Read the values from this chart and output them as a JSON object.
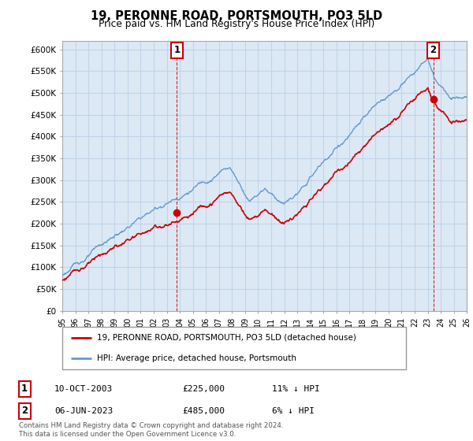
{
  "title": "19, PERONNE ROAD, PORTSMOUTH, PO3 5LD",
  "subtitle": "Price paid vs. HM Land Registry's House Price Index (HPI)",
  "ylabel_ticks": [
    "£0",
    "£50K",
    "£100K",
    "£150K",
    "£200K",
    "£250K",
    "£300K",
    "£350K",
    "£400K",
    "£450K",
    "£500K",
    "£550K",
    "£600K"
  ],
  "ytick_values": [
    0,
    50000,
    100000,
    150000,
    200000,
    250000,
    300000,
    350000,
    400000,
    450000,
    500000,
    550000,
    600000
  ],
  "ylim": [
    0,
    620000
  ],
  "xlim_start": 1995,
  "xlim_end": 2026,
  "hpi_color": "#6699cc",
  "price_color": "#cc0000",
  "bg_color": "#dce9f5",
  "grid_color": "#c0d4e8",
  "marker1_x": 2003.78,
  "marker1_y": 225000,
  "marker2_x": 2023.43,
  "marker2_y": 485000,
  "legend_line1": "19, PERONNE ROAD, PORTSMOUTH, PO3 5LD (detached house)",
  "legend_line2": "HPI: Average price, detached house, Portsmouth",
  "table_row1_num": "1",
  "table_row1_date": "10-OCT-2003",
  "table_row1_price": "£225,000",
  "table_row1_hpi": "11% ↓ HPI",
  "table_row2_num": "2",
  "table_row2_date": "06-JUN-2023",
  "table_row2_price": "£485,000",
  "table_row2_hpi": "6% ↓ HPI",
  "footnote1": "Contains HM Land Registry data © Crown copyright and database right 2024.",
  "footnote2": "This data is licensed under the Open Government Licence v3.0."
}
